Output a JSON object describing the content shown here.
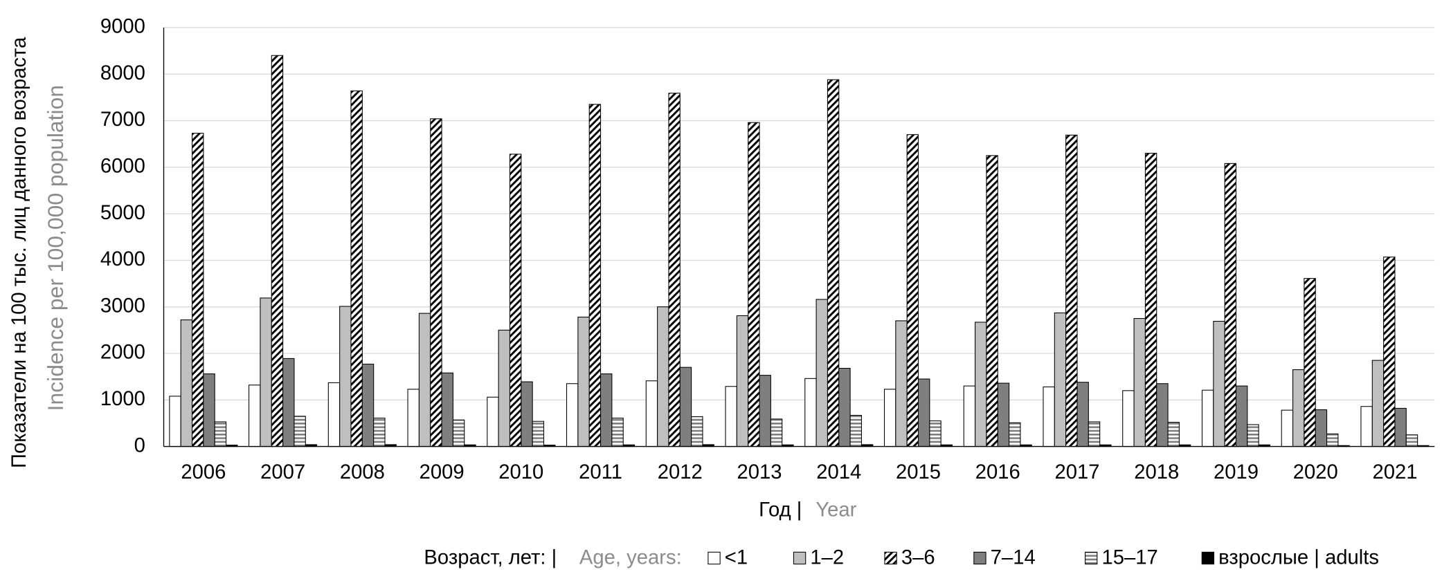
{
  "chart_data": {
    "type": "bar",
    "ylabel": {
      "ru": "Показатели на 100 тыс. лиц данного возраста",
      "en": "Incidence per 100,000 population"
    },
    "xlabel": {
      "ru": "Год |",
      "en": "Year"
    },
    "legend_title": {
      "ru": "Возраст, лет: |",
      "en": "Age, years:"
    },
    "categories": [
      "2006",
      "2007",
      "2008",
      "2009",
      "2010",
      "2011",
      "2012",
      "2013",
      "2014",
      "2015",
      "2016",
      "2017",
      "2018",
      "2019",
      "2020",
      "2021"
    ],
    "series": [
      {
        "name": "<1",
        "color": "#ffffff",
        "values": [
          1080,
          1320,
          1370,
          1230,
          1060,
          1350,
          1410,
          1290,
          1460,
          1230,
          1300,
          1280,
          1200,
          1210,
          780,
          860
        ]
      },
      {
        "name": "1–2",
        "color": "#bfbfbf",
        "values": [
          2720,
          3190,
          3010,
          2860,
          2500,
          2780,
          3000,
          2810,
          3160,
          2700,
          2670,
          2870,
          2750,
          2690,
          1650,
          1850
        ]
      },
      {
        "name": "3–6",
        "color": "#000000",
        "pattern": "diagonal",
        "values": [
          6730,
          8400,
          7640,
          7040,
          6280,
          7350,
          7590,
          6960,
          7880,
          6700,
          6250,
          6690,
          6300,
          6080,
          3610,
          4070
        ]
      },
      {
        "name": "7–14",
        "color": "#7f7f7f",
        "values": [
          1560,
          1890,
          1770,
          1580,
          1390,
          1560,
          1700,
          1530,
          1680,
          1450,
          1360,
          1380,
          1350,
          1300,
          790,
          820
        ]
      },
      {
        "name": "15–17",
        "color": "#7f7f7f",
        "pattern": "horizontal",
        "values": [
          530,
          650,
          610,
          570,
          540,
          610,
          640,
          590,
          670,
          550,
          510,
          530,
          520,
          470,
          270,
          250
        ]
      },
      {
        "name": "взрослые | adults",
        "color": "#000000",
        "values": [
          30,
          40,
          40,
          35,
          30,
          35,
          40,
          35,
          40,
          35,
          35,
          35,
          35,
          35,
          20,
          20
        ]
      }
    ],
    "ylim": [
      0,
      9000
    ],
    "yticks": [
      0,
      1000,
      2000,
      3000,
      4000,
      5000,
      6000,
      7000,
      8000,
      9000
    ],
    "grid": true
  }
}
